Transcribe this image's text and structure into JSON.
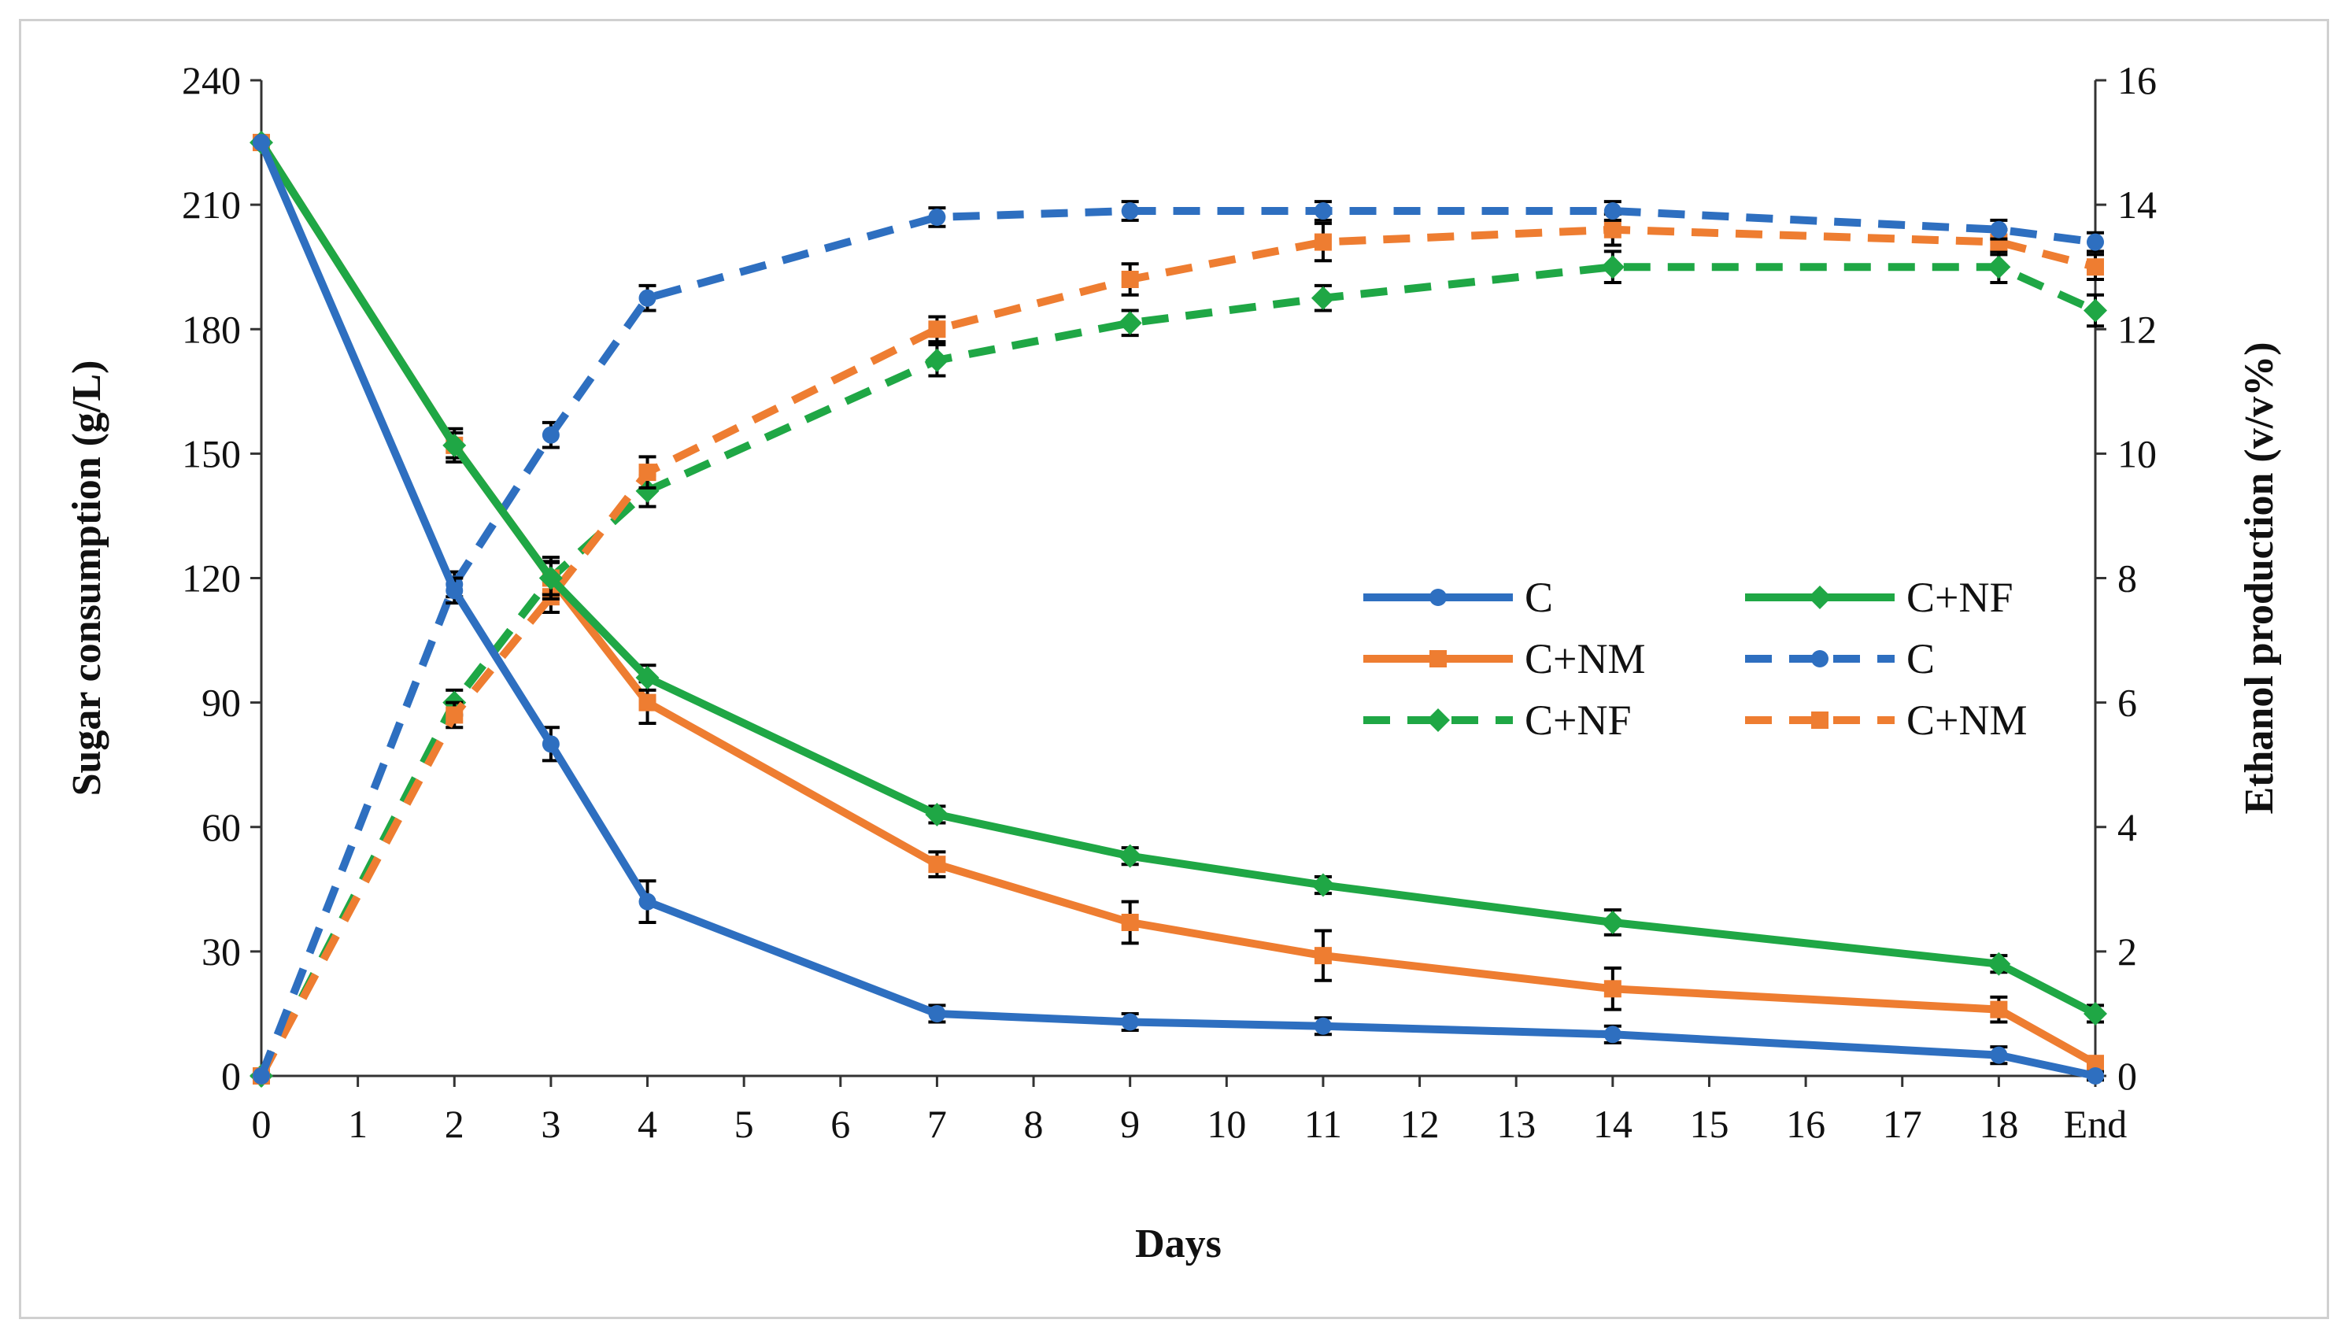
{
  "chart_data": {
    "type": "line",
    "xlabel": "Days",
    "ylabel": "Sugar consumption (g/L)",
    "y2label": "Ethanol production (v/v%)",
    "categories": [
      "0",
      "1",
      "2",
      "3",
      "4",
      "5",
      "6",
      "7",
      "8",
      "9",
      "10",
      "11",
      "12",
      "13",
      "14",
      "15",
      "16",
      "17",
      "18",
      "End"
    ],
    "ylim": [
      0,
      240
    ],
    "y2lim": [
      0,
      16
    ],
    "yticks": [
      "0",
      "30",
      "60",
      "90",
      "120",
      "150",
      "180",
      "210",
      "240"
    ],
    "y2ticks": [
      "0",
      "2",
      "4",
      "6",
      "8",
      "10",
      "12",
      "14",
      "16"
    ],
    "grid": false,
    "legend_position": "center-right",
    "series": [
      {
        "name": "C",
        "axis": "left",
        "style": "solid",
        "color": "#2E6FC0",
        "marker": "circle",
        "x": [
          "0",
          "2",
          "3",
          "4",
          "7",
          "9",
          "11",
          "14",
          "18",
          "End"
        ],
        "values": [
          225,
          117,
          80,
          42,
          15,
          13,
          12,
          10,
          5,
          0
        ],
        "errors": [
          0,
          3,
          4,
          5,
          2,
          2,
          2,
          2,
          2,
          1
        ]
      },
      {
        "name": "C+NM",
        "axis": "left",
        "style": "solid",
        "color": "#EE7D31",
        "marker": "square",
        "x": [
          "0",
          "2",
          "3",
          "4",
          "7",
          "9",
          "11",
          "14",
          "18",
          "End"
        ],
        "values": [
          225,
          152,
          120,
          90,
          51,
          37,
          29,
          21,
          16,
          3
        ],
        "errors": [
          0,
          4,
          5,
          5,
          3,
          5,
          6,
          5,
          3,
          1
        ]
      },
      {
        "name": "C+NF",
        "axis": "left",
        "style": "solid",
        "color": "#1FA745",
        "marker": "diamond",
        "x": [
          "0",
          "2",
          "3",
          "4",
          "7",
          "9",
          "11",
          "14",
          "18",
          "End"
        ],
        "values": [
          225,
          152,
          120,
          96,
          63,
          53,
          46,
          37,
          27,
          15
        ],
        "errors": [
          0,
          3,
          4,
          3,
          2,
          2,
          2,
          3,
          2,
          2
        ]
      },
      {
        "name": "C",
        "axis": "right",
        "style": "dashed",
        "color": "#2E6FC0",
        "marker": "circle",
        "x": [
          "0",
          "2",
          "3",
          "4",
          "7",
          "9",
          "11",
          "14",
          "18",
          "End"
        ],
        "values": [
          0,
          7.9,
          10.3,
          12.5,
          13.8,
          13.9,
          13.9,
          13.9,
          13.6,
          13.4
        ],
        "errors": [
          0,
          0.2,
          0.2,
          0.2,
          0.15,
          0.15,
          0.15,
          0.15,
          0.15,
          0.15
        ]
      },
      {
        "name": "C+NF",
        "axis": "right",
        "style": "dashed",
        "color": "#1FA745",
        "marker": "diamond",
        "x": [
          "0",
          "2",
          "3",
          "4",
          "7",
          "9",
          "11",
          "14",
          "18",
          "End"
        ],
        "values": [
          0,
          6.0,
          8.0,
          9.4,
          11.5,
          12.1,
          12.5,
          13.0,
          13.0,
          12.3
        ],
        "errors": [
          0,
          0.2,
          0.25,
          0.25,
          0.25,
          0.2,
          0.2,
          0.25,
          0.25,
          0.25
        ]
      },
      {
        "name": "C+NM",
        "axis": "right",
        "style": "dashed",
        "color": "#EE7D31",
        "marker": "square",
        "x": [
          "0",
          "2",
          "3",
          "4",
          "7",
          "9",
          "11",
          "14",
          "18",
          "End"
        ],
        "values": [
          0,
          5.8,
          7.7,
          9.7,
          12.0,
          12.8,
          13.4,
          13.6,
          13.4,
          13.0
        ],
        "errors": [
          0,
          0.2,
          0.25,
          0.25,
          0.2,
          0.25,
          0.3,
          0.25,
          0.2,
          0.2
        ]
      }
    ],
    "legend": [
      {
        "series_index": 0,
        "label": "C"
      },
      {
        "series_index": 2,
        "label": "C+NF"
      },
      {
        "series_index": 1,
        "label": "C+NM"
      },
      {
        "series_index": 3,
        "label": "C"
      },
      {
        "series_index": 4,
        "label": "C+NF"
      },
      {
        "series_index": 5,
        "label": "C+NM"
      }
    ]
  }
}
